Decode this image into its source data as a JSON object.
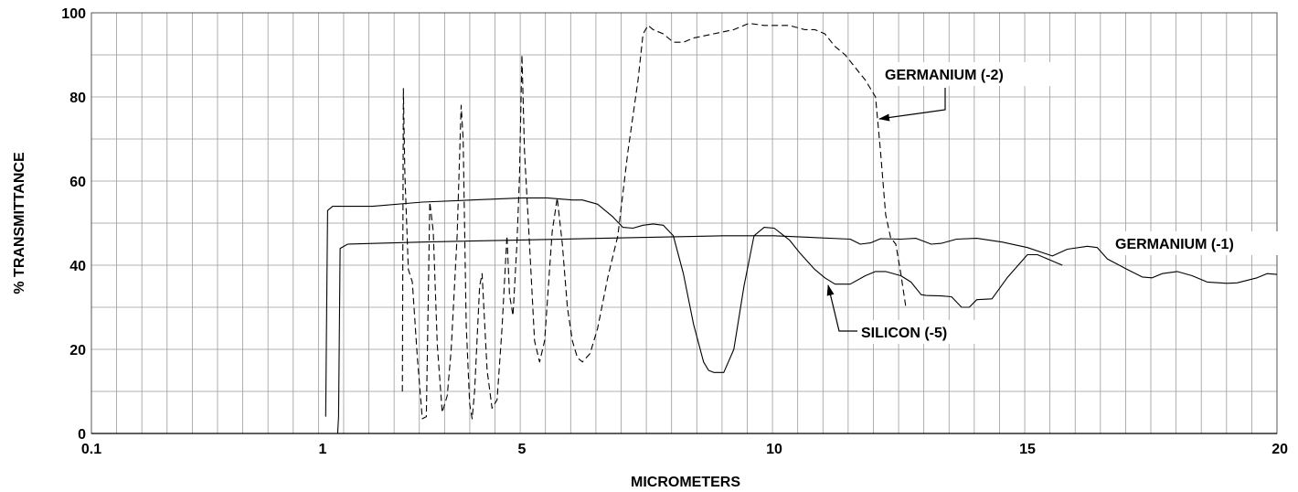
{
  "chart_data": {
    "type": "line",
    "title": "",
    "xlabel": "MICROMETERS",
    "ylabel": "% TRANSMITTANCE",
    "x_ticks": [
      "0.1",
      "1",
      "5",
      "10",
      "15",
      "20"
    ],
    "y_ticks": [
      "0",
      "20",
      "40",
      "60",
      "80",
      "100"
    ],
    "ylim": [
      0,
      100
    ],
    "grid": true,
    "annotations": [
      {
        "text": "GERMANIUM (-2)",
        "series": "germanium-2"
      },
      {
        "text": "GERMANIUM (-1)",
        "series": "germanium-1"
      },
      {
        "text": "SILICON (-5)",
        "series": "silicon-5"
      }
    ],
    "series": [
      {
        "name": "GERMANIUM (-1)",
        "style": "solid",
        "points": [
          [
            1.3,
            0
          ],
          [
            1.32,
            4
          ],
          [
            1.35,
            44
          ],
          [
            1.5,
            45
          ],
          [
            3,
            45.5
          ],
          [
            5,
            46
          ],
          [
            7,
            46.5
          ],
          [
            9,
            47
          ],
          [
            10,
            47
          ],
          [
            11.5,
            46.2
          ],
          [
            11.7,
            45
          ],
          [
            11.9,
            45.3
          ],
          [
            12.1,
            46.3
          ],
          [
            12.5,
            46.2
          ],
          [
            12.8,
            46.4
          ],
          [
            13.1,
            45
          ],
          [
            13.3,
            45.2
          ],
          [
            13.6,
            46.2
          ],
          [
            14,
            46.4
          ],
          [
            14.5,
            45.5
          ],
          [
            15,
            44.2
          ],
          [
            15.5,
            42.2
          ],
          [
            15.8,
            43.8
          ],
          [
            16.2,
            44.5
          ],
          [
            16.4,
            44.2
          ],
          [
            16.6,
            41.5
          ],
          [
            17,
            39
          ],
          [
            17.3,
            37.2
          ],
          [
            17.5,
            37
          ],
          [
            17.7,
            38
          ],
          [
            18,
            38.5
          ],
          [
            18.3,
            37.5
          ],
          [
            18.6,
            36
          ],
          [
            19,
            35.7
          ],
          [
            19.2,
            35.8
          ],
          [
            19.6,
            37
          ],
          [
            19.8,
            38
          ],
          [
            20,
            37.8
          ]
        ]
      },
      {
        "name": "GERMANIUM (-2)",
        "style": "dashed",
        "points": [
          [
            2.6,
            10
          ],
          [
            2.62,
            82
          ],
          [
            2.65,
            62
          ],
          [
            2.72,
            39
          ],
          [
            2.8,
            36
          ],
          [
            2.9,
            18
          ],
          [
            3.0,
            3.5
          ],
          [
            3.08,
            4
          ],
          [
            3.15,
            55
          ],
          [
            3.22,
            48
          ],
          [
            3.3,
            21
          ],
          [
            3.4,
            5
          ],
          [
            3.5,
            9
          ],
          [
            3.58,
            20
          ],
          [
            3.7,
            47
          ],
          [
            3.78,
            78
          ],
          [
            3.82,
            70
          ],
          [
            3.88,
            26
          ],
          [
            3.95,
            7
          ],
          [
            4,
            3.5
          ],
          [
            4.05,
            10
          ],
          [
            4.15,
            35
          ],
          [
            4.2,
            38
          ],
          [
            4.3,
            15
          ],
          [
            4.4,
            6
          ],
          [
            4.5,
            8
          ],
          [
            4.6,
            25
          ],
          [
            4.7,
            47
          ],
          [
            4.75,
            33
          ],
          [
            4.82,
            28
          ],
          [
            4.9,
            45
          ],
          [
            4.95,
            61
          ],
          [
            5.0,
            90
          ],
          [
            5.05,
            67
          ],
          [
            5.15,
            45
          ],
          [
            5.25,
            22
          ],
          [
            5.35,
            17
          ],
          [
            5.45,
            22
          ],
          [
            5.6,
            48
          ],
          [
            5.7,
            56
          ],
          [
            5.8,
            45
          ],
          [
            5.9,
            30
          ],
          [
            6.0,
            22
          ],
          [
            6.1,
            18
          ],
          [
            6.2,
            17
          ],
          [
            6.35,
            19
          ],
          [
            6.5,
            25
          ],
          [
            6.7,
            37
          ],
          [
            6.9,
            47
          ],
          [
            7.1,
            67
          ],
          [
            7.3,
            84
          ],
          [
            7.4,
            95
          ],
          [
            7.5,
            97
          ],
          [
            7.6,
            96
          ],
          [
            7.8,
            95
          ],
          [
            8,
            93
          ],
          [
            8.2,
            93
          ],
          [
            8.4,
            94
          ],
          [
            8.6,
            94.5
          ],
          [
            8.8,
            95
          ],
          [
            9,
            95.5
          ],
          [
            9.2,
            96
          ],
          [
            9.5,
            97.5
          ],
          [
            9.8,
            97
          ],
          [
            10,
            97
          ],
          [
            10.3,
            97
          ],
          [
            10.6,
            96
          ],
          [
            10.8,
            96
          ],
          [
            11,
            95
          ],
          [
            11.2,
            92
          ],
          [
            11.4,
            90
          ],
          [
            11.6,
            87
          ],
          [
            11.8,
            84
          ],
          [
            12,
            80
          ],
          [
            12.1,
            67
          ],
          [
            12.2,
            52
          ],
          [
            12.3,
            46.5
          ],
          [
            12.4,
            45
          ],
          [
            12.5,
            38
          ],
          [
            12.6,
            30
          ]
        ]
      },
      {
        "name": "SILICON (-5)",
        "style": "solid",
        "points": [
          [
            1.06,
            4
          ],
          [
            1.08,
            30
          ],
          [
            1.1,
            53
          ],
          [
            1.2,
            54
          ],
          [
            2,
            54
          ],
          [
            3,
            55
          ],
          [
            4,
            55.5
          ],
          [
            5,
            56
          ],
          [
            5.5,
            56
          ],
          [
            6,
            55.5
          ],
          [
            6.2,
            55.5
          ],
          [
            6.5,
            54.5
          ],
          [
            6.8,
            51.5
          ],
          [
            7.0,
            49
          ],
          [
            7.2,
            48.8
          ],
          [
            7.4,
            49.5
          ],
          [
            7.6,
            49.8
          ],
          [
            7.8,
            49.5
          ],
          [
            8,
            47
          ],
          [
            8.2,
            38
          ],
          [
            8.4,
            26
          ],
          [
            8.6,
            17
          ],
          [
            8.7,
            15
          ],
          [
            8.8,
            14.5
          ],
          [
            9,
            14.5
          ],
          [
            9.2,
            20
          ],
          [
            9.4,
            35
          ],
          [
            9.6,
            47
          ],
          [
            9.8,
            49
          ],
          [
            10,
            48.8
          ],
          [
            10.3,
            46
          ],
          [
            10.5,
            43
          ],
          [
            10.8,
            39
          ],
          [
            11,
            37
          ],
          [
            11.2,
            35.5
          ],
          [
            11.5,
            35.5
          ],
          [
            11.8,
            37.5
          ],
          [
            12,
            38.5
          ],
          [
            12.2,
            38.5
          ],
          [
            12.5,
            37.5
          ],
          [
            12.7,
            36
          ],
          [
            12.9,
            33
          ],
          [
            13,
            32.8
          ],
          [
            13.3,
            32.7
          ],
          [
            13.5,
            32.5
          ],
          [
            13.7,
            30
          ],
          [
            13.85,
            30
          ],
          [
            14,
            31.8
          ],
          [
            14.3,
            32
          ],
          [
            14.6,
            37
          ],
          [
            15,
            42.5
          ],
          [
            15.2,
            42.5
          ],
          [
            15.6,
            40.5
          ],
          [
            15.7,
            40
          ]
        ]
      }
    ]
  }
}
